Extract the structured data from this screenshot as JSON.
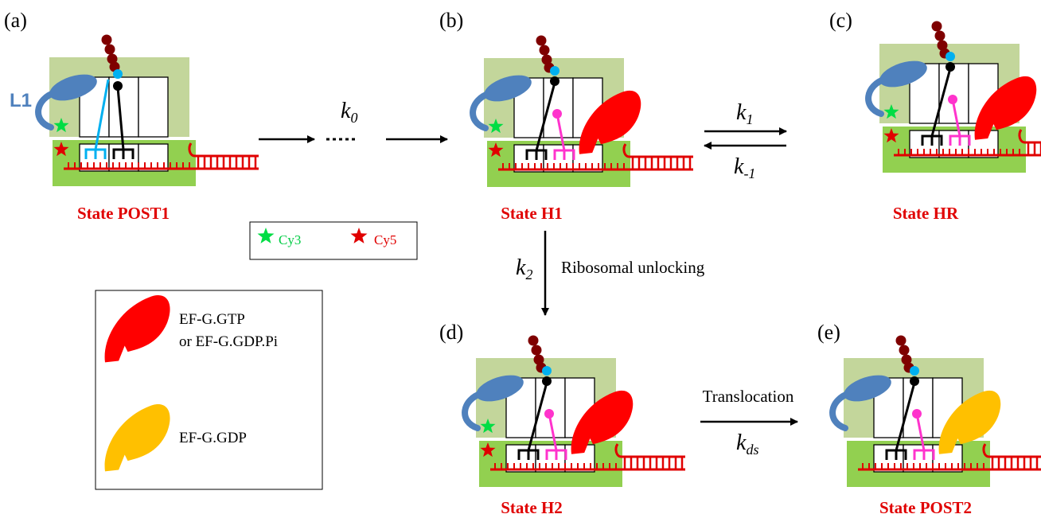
{
  "panels": [
    {
      "label": "(a)",
      "state": "State POST1"
    },
    {
      "label": "(b)",
      "state": "State H1"
    },
    {
      "label": "(c)",
      "state": "State HR"
    },
    {
      "label": "(d)",
      "state": "State H2"
    },
    {
      "label": "(e)",
      "state": "State POST2"
    }
  ],
  "l1_label": "L1",
  "rates": {
    "k0": {
      "symbol": "k",
      "subscript": "0"
    },
    "k1": {
      "symbol": "k",
      "subscript": "1"
    },
    "k_minus1": {
      "symbol": "k",
      "subscript": "-1"
    },
    "k2": {
      "symbol": "k",
      "subscript": "2"
    },
    "kds": {
      "symbol": "k",
      "subscript": "ds"
    }
  },
  "steps": {
    "unlocking": "Ribosomal unlocking",
    "translocation": "Translocation"
  },
  "dye_legend": {
    "cy3": "Cy3",
    "cy5": "Cy5"
  },
  "efg_legend": {
    "gtp_line1": "EF-G.GTP",
    "gtp_line2": "or EF-G.GDP.Pi",
    "gdp": "EF-G.GDP"
  }
}
